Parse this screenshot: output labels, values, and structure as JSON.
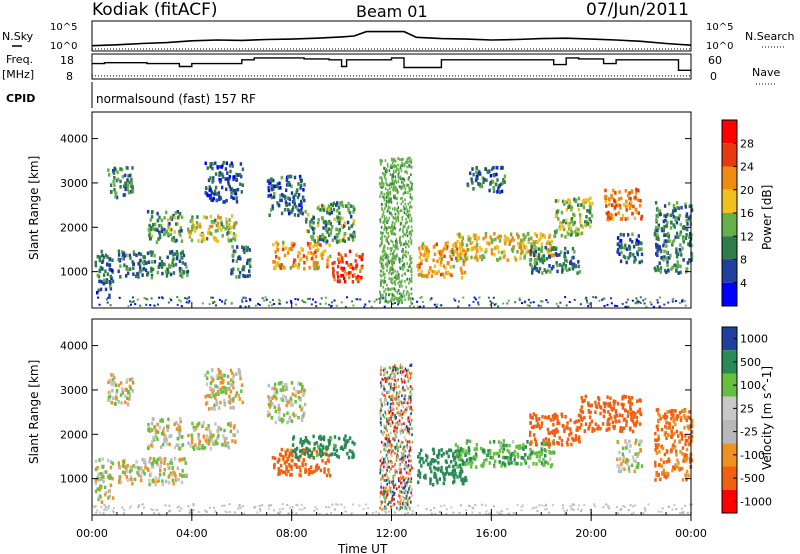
{
  "header": {
    "station": "Kodiak (fitACF)",
    "beam": "Beam 01",
    "date": "07/Jun/2011"
  },
  "left_labels": {
    "nsky": "N.Sky",
    "freq": "Freq.",
    "freq_unit": "[MHz]",
    "cpid": "CPID"
  },
  "right_labels": {
    "nsearch": "N.Search",
    "nave": "Nave"
  },
  "cpid_text": "normalsound (fast) 157 RF",
  "colors": {
    "power": [
      "#0000ff",
      "#1f3f9f",
      "#2e7d48",
      "#66b04a",
      "#f0c020",
      "#f08a10",
      "#e83a10",
      "#ff0000"
    ],
    "velocity": [
      "#ff0000",
      "#f06010",
      "#f09020",
      "#b8b8b8",
      "#c8c8c8",
      "#66c040",
      "#2a8a55",
      "#1f3f9f"
    ]
  },
  "chart_data": [
    {
      "type": "line",
      "panel": "noise",
      "series": [
        {
          "name": "N.Sky",
          "x": [
            0,
            1,
            2,
            3,
            4,
            5,
            6,
            7,
            8,
            9,
            10,
            10.5,
            11,
            11.5,
            12,
            12.5,
            13,
            14,
            15,
            16,
            17,
            18,
            19,
            20,
            21,
            22,
            23,
            24
          ],
          "y": [
            0.3,
            0.5,
            0.8,
            1.0,
            1.4,
            1.6,
            1.5,
            1.7,
            1.8,
            2.0,
            2.3,
            2.5,
            3.5,
            3.5,
            3.5,
            3.5,
            2.2,
            1.9,
            1.8,
            1.6,
            1.7,
            1.9,
            2.0,
            1.8,
            1.6,
            1.3,
            0.8,
            0.4
          ]
        },
        {
          "name": "N.Search",
          "x": [
            0,
            24
          ],
          "y": [
            0,
            0
          ]
        }
      ],
      "ylabels": [
        "10^5",
        "10^0"
      ],
      "yticks_right": [
        "10^5",
        "10^0"
      ]
    },
    {
      "type": "line",
      "panel": "frequency",
      "series": [
        {
          "name": "Freq.",
          "x": [
            0,
            0.5,
            0.5,
            2.2,
            2.2,
            3.5,
            3.5,
            4.0,
            4.0,
            6.0,
            6.0,
            6.5,
            6.5,
            8.5,
            8.5,
            9.5,
            9.5,
            10.0,
            10.0,
            10.2,
            10.2,
            12.0,
            12.0,
            12.5,
            12.5,
            14.0,
            14.0,
            18.5,
            18.5,
            19.0,
            19.0,
            19.5,
            19.5,
            20.5,
            20.5,
            21.0,
            21.0,
            23.5,
            23.5,
            24
          ],
          "y": [
            15,
            15,
            15.5,
            15.5,
            15,
            15,
            13.5,
            13.5,
            15,
            15,
            17,
            17,
            18,
            18,
            17.5,
            17.5,
            17,
            17,
            13.5,
            13.5,
            17,
            17,
            18,
            18,
            13,
            13,
            17,
            17,
            14.5,
            14.5,
            18,
            18,
            17.5,
            17.5,
            15,
            15,
            17,
            17,
            11.5,
            11.5
          ]
        },
        {
          "name": "Nave",
          "x": [
            0,
            24
          ],
          "y": [
            0,
            0
          ]
        }
      ],
      "yticks_left": [
        "18",
        "8"
      ],
      "yticks_right": [
        "60",
        "0"
      ]
    },
    {
      "type": "heatmap",
      "panel": "power",
      "ylabel": "Slant Range [km]",
      "yticks": [
        1000,
        2000,
        3000,
        4000
      ],
      "ylim": [
        180,
        4600
      ],
      "xlim": [
        0,
        24
      ],
      "colorbar": {
        "label": "Power [dB]",
        "ticks": [
          4,
          8,
          12,
          16,
          20,
          24,
          28
        ]
      },
      "regions": [
        {
          "t0": 0.1,
          "t1": 0.8,
          "r0": 500,
          "r1": 1500,
          "v": 8
        },
        {
          "t0": 0.6,
          "t1": 1.6,
          "r0": 2700,
          "r1": 3400,
          "v": 10
        },
        {
          "t0": 1.0,
          "t1": 3.8,
          "r0": 900,
          "r1": 1500,
          "v": 9
        },
        {
          "t0": 2.2,
          "t1": 3.6,
          "r0": 1700,
          "r1": 2400,
          "v": 12
        },
        {
          "t0": 3.8,
          "t1": 5.8,
          "r0": 1700,
          "r1": 2300,
          "v": 16
        },
        {
          "t0": 4.5,
          "t1": 6.0,
          "r0": 2600,
          "r1": 3500,
          "v": 7
        },
        {
          "t0": 5.5,
          "t1": 6.3,
          "r0": 900,
          "r1": 1600,
          "v": 9
        },
        {
          "t0": 7.0,
          "t1": 8.5,
          "r0": 2300,
          "r1": 3200,
          "v": 8
        },
        {
          "t0": 7.2,
          "t1": 9.5,
          "r0": 1100,
          "r1": 1700,
          "v": 20
        },
        {
          "t0": 9.5,
          "t1": 10.8,
          "r0": 800,
          "r1": 1500,
          "v": 26
        },
        {
          "t0": 8.5,
          "t1": 10.5,
          "r0": 1700,
          "r1": 2600,
          "v": 12
        },
        {
          "t0": 13.0,
          "t1": 15.0,
          "r0": 900,
          "r1": 1700,
          "v": 20
        },
        {
          "t0": 14.5,
          "t1": 18.5,
          "r0": 1300,
          "r1": 1900,
          "v": 18
        },
        {
          "t0": 15.0,
          "t1": 16.5,
          "r0": 2800,
          "r1": 3400,
          "v": 8
        },
        {
          "t0": 17.5,
          "t1": 19.5,
          "r0": 1000,
          "r1": 1600,
          "v": 10
        },
        {
          "t0": 18.5,
          "t1": 20.0,
          "r0": 1800,
          "r1": 2700,
          "v": 14
        },
        {
          "t0": 20.5,
          "t1": 22.0,
          "r0": 2200,
          "r1": 2900,
          "v": 22
        },
        {
          "t0": 21.0,
          "t1": 22.0,
          "r0": 1200,
          "r1": 1900,
          "v": 8
        },
        {
          "t0": 22.5,
          "t1": 24.0,
          "r0": 1000,
          "r1": 2600,
          "v": 10
        }
      ]
    },
    {
      "type": "heatmap",
      "panel": "velocity",
      "ylabel": "Slant Range [km]",
      "yticks": [
        1000,
        2000,
        3000,
        4000
      ],
      "ylim": [
        180,
        4600
      ],
      "xlim": [
        0,
        24
      ],
      "colorbar": {
        "label": "Velocity [m s^-1]",
        "ticks": [
          1000,
          500,
          100,
          25,
          -25,
          -100,
          -500,
          -1000
        ]
      },
      "regions": [
        {
          "t0": 0.1,
          "t1": 0.8,
          "r0": 500,
          "r1": 1500,
          "v": 0
        },
        {
          "t0": 0.6,
          "t1": 1.6,
          "r0": 2700,
          "r1": 3400,
          "v": 0
        },
        {
          "t0": 1.0,
          "t1": 3.8,
          "r0": 900,
          "r1": 1500,
          "v": 0
        },
        {
          "t0": 2.2,
          "t1": 3.6,
          "r0": 1700,
          "r1": 2400,
          "v": 0
        },
        {
          "t0": 3.8,
          "t1": 5.8,
          "r0": 1700,
          "r1": 2300,
          "v": 0
        },
        {
          "t0": 4.5,
          "t1": 6.0,
          "r0": 2600,
          "r1": 3500,
          "v": 0
        },
        {
          "t0": 7.0,
          "t1": 8.5,
          "r0": 2300,
          "r1": 3200,
          "v": 0
        },
        {
          "t0": 7.2,
          "t1": 9.5,
          "r0": 1100,
          "r1": 1700,
          "v": -150
        },
        {
          "t0": 8.0,
          "t1": 10.5,
          "r0": 1500,
          "r1": 2000,
          "v": 150
        },
        {
          "t0": 13.0,
          "t1": 15.0,
          "r0": 900,
          "r1": 1700,
          "v": 300
        },
        {
          "t0": 14.5,
          "t1": 18.5,
          "r0": 1300,
          "r1": 1900,
          "v": 80
        },
        {
          "t0": 17.5,
          "t1": 19.5,
          "r0": 1800,
          "r1": 2500,
          "v": -200
        },
        {
          "t0": 19.5,
          "t1": 22.0,
          "r0": 2100,
          "r1": 2900,
          "v": -300
        },
        {
          "t0": 21.0,
          "t1": 22.0,
          "r0": 1200,
          "r1": 1900,
          "v": 0
        },
        {
          "t0": 22.5,
          "t1": 24.0,
          "r0": 1000,
          "r1": 2600,
          "v": -120
        }
      ]
    }
  ],
  "xaxis": {
    "ticks": [
      "00:00",
      "04:00",
      "08:00",
      "12:00",
      "16:00",
      "20:00",
      "00:00"
    ],
    "label": "Time UT"
  }
}
